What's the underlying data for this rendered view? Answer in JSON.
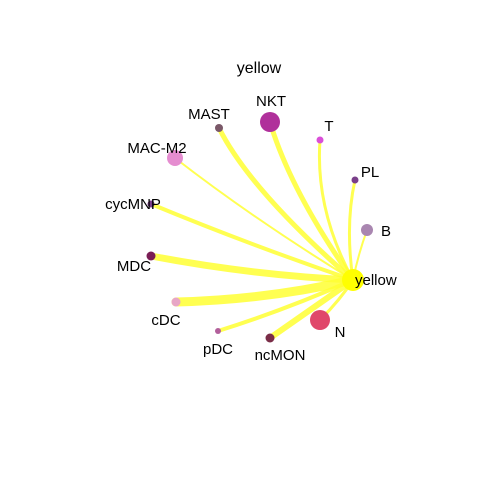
{
  "title": "yellow",
  "center": {
    "label": "yellow",
    "color": "#FFFF00"
  },
  "edge_color": "#FFFF33",
  "nodes": [
    {
      "id": "NKT",
      "label": "NKT",
      "color": "#B0309B",
      "weight": 5
    },
    {
      "id": "MAST",
      "label": "MAST",
      "color": "#7A5868",
      "weight": 5
    },
    {
      "id": "T",
      "label": "T",
      "color": "#DA4FD8",
      "weight": 3
    },
    {
      "id": "PL",
      "label": "PL",
      "color": "#7A3F8A",
      "weight": 3
    },
    {
      "id": "B",
      "label": "B",
      "color": "#A986B0",
      "weight": 2
    },
    {
      "id": "MAC-M2",
      "label": "MAC-M2",
      "color": "#E58DD0",
      "weight": 2
    },
    {
      "id": "cycMNP",
      "label": "cycMNP",
      "color": "#7A3F8A",
      "weight": 4
    },
    {
      "id": "MDC",
      "label": "MDC",
      "color": "#7A1E55",
      "weight": 7
    },
    {
      "id": "cDC",
      "label": "cDC",
      "color": "#E8A6C6",
      "weight": 9
    },
    {
      "id": "pDC",
      "label": "pDC",
      "color": "#B25F9B",
      "weight": 4
    },
    {
      "id": "ncMON",
      "label": "ncMON",
      "color": "#7A2D48",
      "weight": 6
    },
    {
      "id": "N",
      "label": "N",
      "color": "#E0476A",
      "weight": 3
    }
  ]
}
